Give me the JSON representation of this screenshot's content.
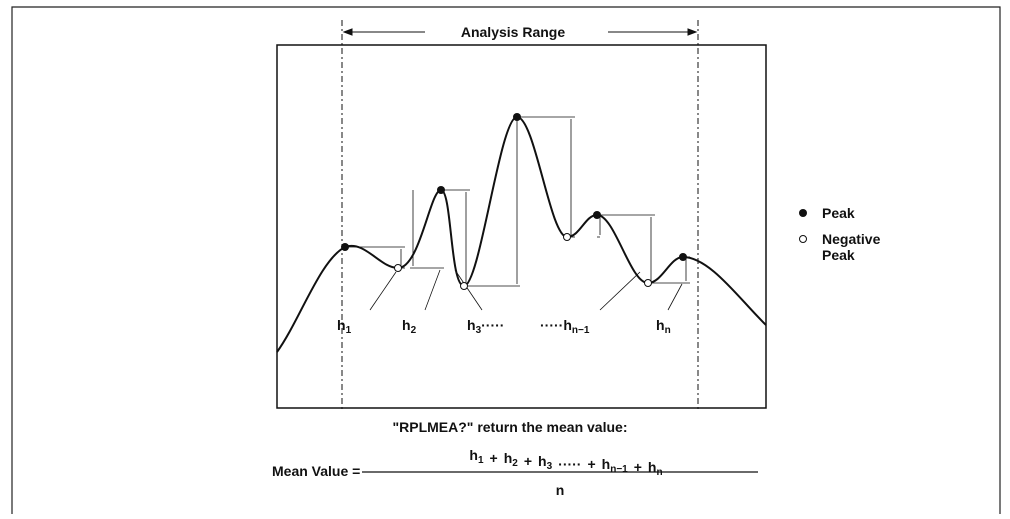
{
  "range_label": "Analysis Range",
  "legend": {
    "peak": "Peak",
    "negative_peak_lines": [
      "Negative",
      "Peak"
    ]
  },
  "height_labels": [
    {
      "base": "h",
      "sub": "1"
    },
    {
      "base": "h",
      "sub": "2"
    },
    {
      "base": "h",
      "sub": "3",
      "suffix": "·····"
    },
    {
      "prefix": "·····",
      "base": "h",
      "sub": "n−1"
    },
    {
      "base": "h",
      "sub": "n"
    }
  ],
  "caption": "\"RPLMEA?\" return the mean value:",
  "formula": {
    "lhs": "Mean Value =",
    "numerator": [
      {
        "base": "h",
        "sub": "1"
      },
      "+",
      {
        "base": "h",
        "sub": "2"
      },
      "+",
      {
        "base": "h",
        "sub": "3"
      },
      "·····",
      "+",
      {
        "base": "h",
        "sub": "n−1"
      },
      "+",
      {
        "base": "h",
        "sub": "n"
      }
    ],
    "denominator": "n"
  }
}
